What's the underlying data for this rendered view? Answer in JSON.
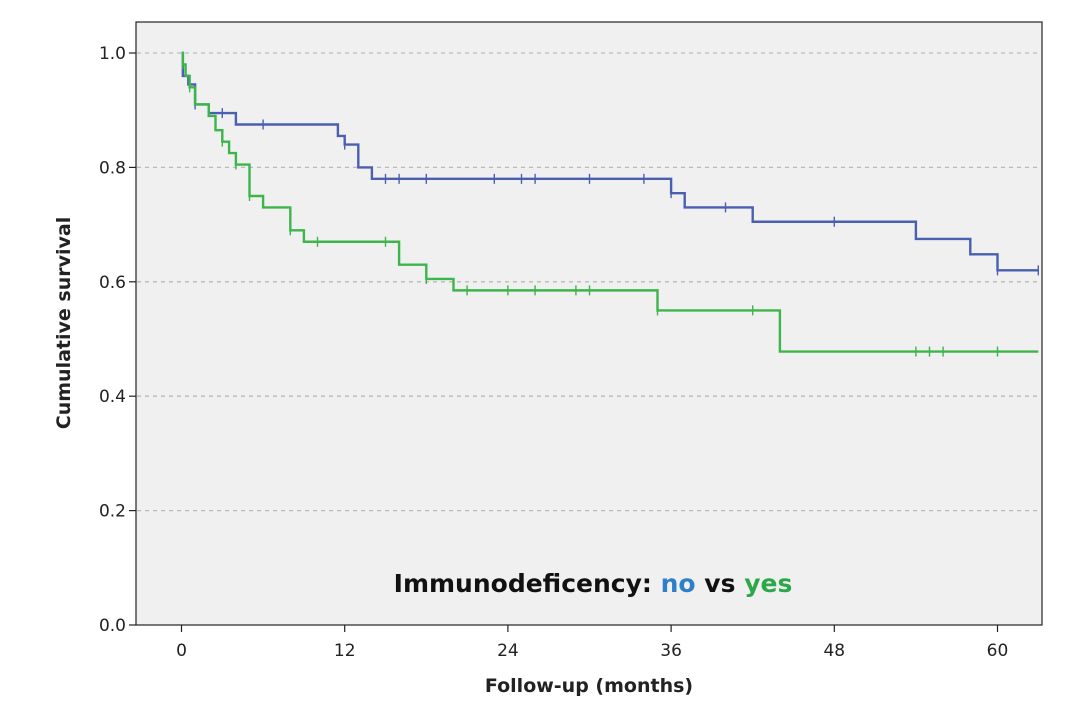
{
  "chart_data": {
    "type": "line",
    "subtype": "kaplan-meier step",
    "xlabel": "Follow-up (months)",
    "ylabel": "Cumulative survival",
    "xlim": [
      -3.5,
      63
    ],
    "ylim": [
      0,
      1.05
    ],
    "x_ticks": [
      0,
      12,
      24,
      36,
      48,
      60
    ],
    "y_ticks": [
      0.0,
      0.2,
      0.4,
      0.6,
      0.8,
      1.0
    ],
    "x_tick_labels": [
      "0",
      "12",
      "24",
      "36",
      "48",
      "60"
    ],
    "y_tick_labels": [
      "0.0",
      "0.2",
      "0.4",
      "0.6",
      "0.8",
      "1.0"
    ],
    "grid": "horizontal dashed",
    "annotation": {
      "prefix": "Immunodeficency: ",
      "no": "no",
      "vs": " vs ",
      "yes": "yes"
    },
    "series": [
      {
        "name": "no",
        "color": "#4a5fb0",
        "steps": [
          [
            0,
            1.0
          ],
          [
            0.1,
            0.96
          ],
          [
            0.5,
            0.945
          ],
          [
            1,
            0.91
          ],
          [
            2,
            0.895
          ],
          [
            4,
            0.875
          ],
          [
            11.5,
            0.855
          ],
          [
            12,
            0.84
          ],
          [
            13,
            0.8
          ],
          [
            14,
            0.78
          ],
          [
            36,
            0.755
          ],
          [
            37,
            0.73
          ],
          [
            42,
            0.705
          ],
          [
            54,
            0.675
          ],
          [
            58,
            0.648
          ],
          [
            60,
            0.62
          ],
          [
            63,
            0.62
          ]
        ],
        "censored": [
          [
            1,
            0.91
          ],
          [
            3,
            0.895
          ],
          [
            6,
            0.875
          ],
          [
            12,
            0.84
          ],
          [
            15,
            0.78
          ],
          [
            16,
            0.78
          ],
          [
            18,
            0.78
          ],
          [
            23,
            0.78
          ],
          [
            25,
            0.78
          ],
          [
            26,
            0.78
          ],
          [
            30,
            0.78
          ],
          [
            34,
            0.78
          ],
          [
            36,
            0.755
          ],
          [
            40,
            0.73
          ],
          [
            48,
            0.705
          ],
          [
            60,
            0.62
          ],
          [
            63,
            0.62
          ]
        ]
      },
      {
        "name": "yes",
        "color": "#3cb54a",
        "steps": [
          [
            0,
            1.0
          ],
          [
            0.1,
            0.98
          ],
          [
            0.3,
            0.96
          ],
          [
            0.6,
            0.94
          ],
          [
            1,
            0.91
          ],
          [
            2,
            0.89
          ],
          [
            2.5,
            0.865
          ],
          [
            3,
            0.845
          ],
          [
            3.5,
            0.825
          ],
          [
            4,
            0.805
          ],
          [
            5,
            0.75
          ],
          [
            6,
            0.73
          ],
          [
            8,
            0.69
          ],
          [
            9,
            0.67
          ],
          [
            16,
            0.63
          ],
          [
            18,
            0.605
          ],
          [
            20,
            0.585
          ],
          [
            35,
            0.55
          ],
          [
            44,
            0.478
          ],
          [
            63,
            0.478
          ]
        ],
        "censored": [
          [
            0.1,
            0.98
          ],
          [
            0.6,
            0.94
          ],
          [
            3,
            0.845
          ],
          [
            4,
            0.805
          ],
          [
            5,
            0.75
          ],
          [
            8,
            0.69
          ],
          [
            10,
            0.67
          ],
          [
            15,
            0.67
          ],
          [
            18,
            0.605
          ],
          [
            21,
            0.585
          ],
          [
            24,
            0.585
          ],
          [
            26,
            0.585
          ],
          [
            29,
            0.585
          ],
          [
            30,
            0.585
          ],
          [
            35,
            0.55
          ],
          [
            42,
            0.55
          ],
          [
            54,
            0.478
          ],
          [
            55,
            0.478
          ],
          [
            56,
            0.478
          ],
          [
            60,
            0.478
          ]
        ]
      }
    ]
  }
}
